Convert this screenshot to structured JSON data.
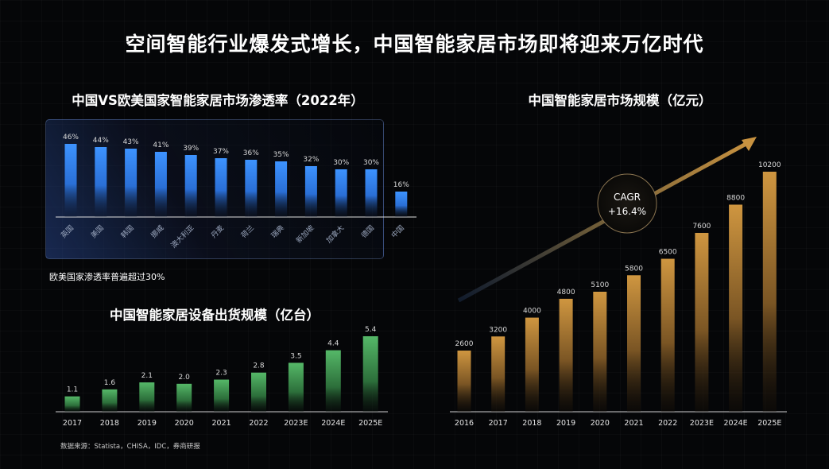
{
  "title": "空间智能行业爆发式增长，中国智能家居市场即将迎来万亿时代",
  "source": "数据来源：Statista，CHISA，IDC，券商研报",
  "chart_data": [
    {
      "type": "bar",
      "title": "中国VS欧美国家智能家居市场渗透率（2022年）",
      "note": "欧美国家渗透率普遍超过30%",
      "categories": [
        "英国",
        "美国",
        "韩国",
        "挪威",
        "澳大利亚",
        "丹麦",
        "荷兰",
        "瑞典",
        "新加坡",
        "加拿大",
        "德国",
        "中国"
      ],
      "values": [
        46,
        44,
        43,
        41,
        39,
        37,
        36,
        35,
        32,
        30,
        30,
        16
      ],
      "value_labels": [
        "46%",
        "44%",
        "43%",
        "41%",
        "39%",
        "37%",
        "36%",
        "35%",
        "32%",
        "30%",
        "30%",
        "16%"
      ],
      "ylim": [
        0,
        46
      ],
      "color": "#3a8dff"
    },
    {
      "type": "bar",
      "title": "中国智能家居设备出货规模（亿台）",
      "categories": [
        "2017",
        "2018",
        "2019",
        "2020",
        "2021",
        "2022",
        "2023E",
        "2024E",
        "2025E"
      ],
      "values": [
        1.1,
        1.6,
        2.1,
        2.0,
        2.3,
        2.8,
        3.5,
        4.4,
        5.4
      ],
      "value_labels": [
        "1.1",
        "1.6",
        "2.1",
        "2.0",
        "2.3",
        "2.8",
        "3.5",
        "4.4",
        "5.4"
      ],
      "ylim": [
        0,
        5.4
      ],
      "color": "#4fae62"
    },
    {
      "type": "bar",
      "title": "中国智能家居市场规模（亿元）",
      "categories": [
        "2016",
        "2017",
        "2018",
        "2019",
        "2020",
        "2021",
        "2022",
        "2023E",
        "2024E",
        "2025E"
      ],
      "values": [
        2600,
        3200,
        4000,
        4800,
        5100,
        5800,
        6500,
        7600,
        8800,
        10200
      ],
      "value_labels": [
        "2600",
        "3200",
        "4000",
        "4800",
        "5100",
        "5800",
        "6500",
        "7600",
        "8800",
        "10200"
      ],
      "ylim": [
        0,
        10200
      ],
      "color": "#c08a3a",
      "annotation": {
        "line1": "CAGR",
        "line2": "+16.4%"
      }
    }
  ]
}
